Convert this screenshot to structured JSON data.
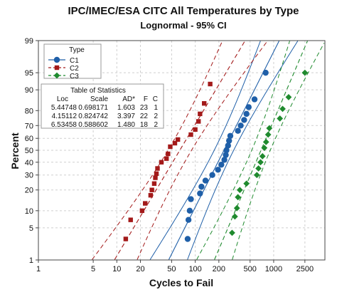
{
  "chart_data": {
    "type": "probability-plot",
    "title": "IPC/IMEC/ESA CITC All Temperatures by Type",
    "subtitle": "Lognormal - 95% CI",
    "xlabel": "Cycles to Fail",
    "ylabel": "Percent",
    "x_scale": "log",
    "y_scale": "lognormal-probability",
    "xlim": [
      1,
      4500
    ],
    "ylim": [
      1,
      99
    ],
    "x_ticks": [
      1,
      5,
      10,
      20,
      50,
      100,
      200,
      500,
      1000,
      2500
    ],
    "x_tick_labels": [
      "1",
      "5",
      "10",
      "20",
      "50",
      "100",
      "200",
      "500",
      "1000",
      "2500"
    ],
    "y_ticks": [
      1,
      5,
      10,
      20,
      30,
      40,
      50,
      60,
      70,
      80,
      90,
      95,
      99
    ],
    "y_tick_labels": [
      "1",
      "5",
      "10",
      "20",
      "30",
      "40",
      "50",
      "60",
      "70",
      "80",
      "90",
      "95",
      "99"
    ],
    "grid": true,
    "legend": {
      "title": "Type",
      "placement": "top-left",
      "entries": [
        "C1",
        "C2",
        "C3"
      ]
    },
    "table": {
      "title": "Table of Statistics",
      "headers": [
        "Loc",
        "Scale",
        "AD*",
        "F",
        "C"
      ],
      "rows": [
        [
          "5.44748",
          "0.698171",
          "1.603",
          "23",
          "1"
        ],
        [
          "4.15112",
          "0.824742",
          "3.397",
          "22",
          "2"
        ],
        [
          "6.53458",
          "0.588602",
          "1.480",
          "18",
          "2"
        ]
      ]
    },
    "series": [
      {
        "name": "C1",
        "color": "#1f5fa8",
        "marker": "circle",
        "line_style": "solid",
        "loc": 5.44748,
        "scale": 0.698171,
        "points": [
          {
            "x": 80,
            "y": 3
          },
          {
            "x": 82,
            "y": 7
          },
          {
            "x": 85,
            "y": 10
          },
          {
            "x": 88,
            "y": 15
          },
          {
            "x": 115,
            "y": 18
          },
          {
            "x": 120,
            "y": 22
          },
          {
            "x": 135,
            "y": 26
          },
          {
            "x": 165,
            "y": 30
          },
          {
            "x": 195,
            "y": 34
          },
          {
            "x": 215,
            "y": 38
          },
          {
            "x": 235,
            "y": 42
          },
          {
            "x": 245,
            "y": 46
          },
          {
            "x": 250,
            "y": 50
          },
          {
            "x": 262,
            "y": 54
          },
          {
            "x": 270,
            "y": 58
          },
          {
            "x": 280,
            "y": 62
          },
          {
            "x": 350,
            "y": 66
          },
          {
            "x": 380,
            "y": 70
          },
          {
            "x": 420,
            "y": 74
          },
          {
            "x": 450,
            "y": 78
          },
          {
            "x": 480,
            "y": 82
          },
          {
            "x": 570,
            "y": 86
          },
          {
            "x": 790,
            "y": 95
          }
        ]
      },
      {
        "name": "C2",
        "color": "#a31a1a",
        "marker": "square",
        "line_style": "dashed",
        "loc": 4.15112,
        "scale": 0.824742,
        "points": [
          {
            "x": 13,
            "y": 3
          },
          {
            "x": 15,
            "y": 7
          },
          {
            "x": 21,
            "y": 10
          },
          {
            "x": 23,
            "y": 13
          },
          {
            "x": 27,
            "y": 17
          },
          {
            "x": 28,
            "y": 20
          },
          {
            "x": 30,
            "y": 24
          },
          {
            "x": 31,
            "y": 28
          },
          {
            "x": 32,
            "y": 31
          },
          {
            "x": 33,
            "y": 35
          },
          {
            "x": 37,
            "y": 40
          },
          {
            "x": 43,
            "y": 43
          },
          {
            "x": 45,
            "y": 47
          },
          {
            "x": 48,
            "y": 53
          },
          {
            "x": 55,
            "y": 56
          },
          {
            "x": 60,
            "y": 59
          },
          {
            "x": 88,
            "y": 63
          },
          {
            "x": 100,
            "y": 67
          },
          {
            "x": 110,
            "y": 73
          },
          {
            "x": 115,
            "y": 78
          },
          {
            "x": 130,
            "y": 84
          },
          {
            "x": 155,
            "y": 92
          }
        ]
      },
      {
        "name": "C3",
        "color": "#1f8a2e",
        "marker": "diamond",
        "line_style": "dashed",
        "loc": 6.53458,
        "scale": 0.588602,
        "points": [
          {
            "x": 295,
            "y": 4
          },
          {
            "x": 320,
            "y": 8
          },
          {
            "x": 340,
            "y": 11
          },
          {
            "x": 350,
            "y": 16
          },
          {
            "x": 370,
            "y": 20
          },
          {
            "x": 450,
            "y": 24
          },
          {
            "x": 610,
            "y": 30
          },
          {
            "x": 640,
            "y": 35
          },
          {
            "x": 680,
            "y": 40
          },
          {
            "x": 720,
            "y": 45
          },
          {
            "x": 760,
            "y": 52
          },
          {
            "x": 800,
            "y": 57
          },
          {
            "x": 850,
            "y": 63
          },
          {
            "x": 880,
            "y": 68
          },
          {
            "x": 1200,
            "y": 75
          },
          {
            "x": 1300,
            "y": 81
          },
          {
            "x": 1550,
            "y": 87
          },
          {
            "x": 2500,
            "y": 95
          }
        ]
      }
    ]
  }
}
